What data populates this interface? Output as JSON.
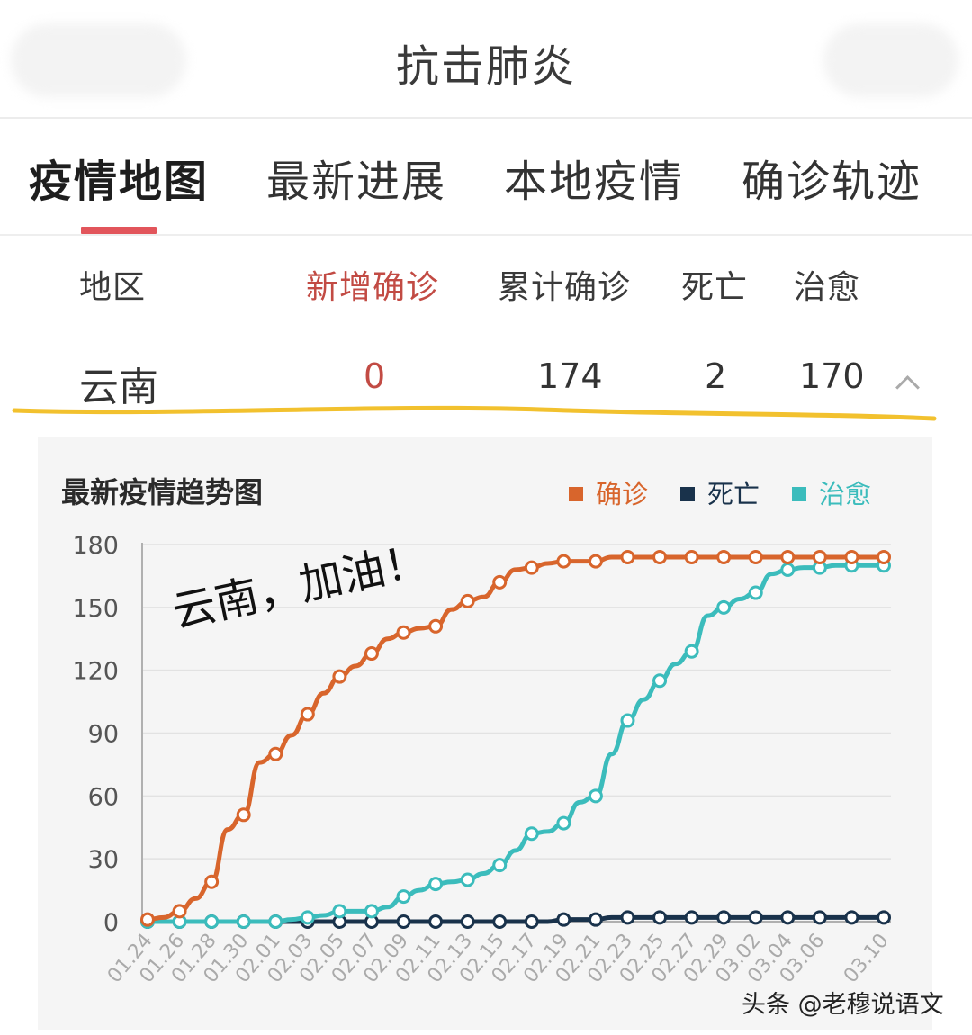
{
  "header": {
    "title": "抗击肺炎"
  },
  "tabs": [
    {
      "label": "疫情地图"
    },
    {
      "label": "最新进展"
    },
    {
      "label": "本地疫情"
    },
    {
      "label": "确诊轨迹"
    }
  ],
  "table": {
    "columns": [
      "地区",
      "新增确诊",
      "累计确诊",
      "死亡",
      "治愈"
    ],
    "row": {
      "region": "云南",
      "new_confirmed": "0",
      "total_confirmed": "174",
      "deaths": "2",
      "cured": "170"
    }
  },
  "colors": {
    "accent": "#e2555b",
    "confirmed": "#d8652c",
    "deaths": "#19324b",
    "cured": "#3bbcbc"
  },
  "icons": {
    "expand": "chevron-up-icon"
  },
  "annotation": "云南，加油！",
  "watermark": "头条 @老穆说语文",
  "chart_data": {
    "type": "line",
    "title": "最新疫情趋势图",
    "legend_position": "top-right",
    "ylim": [
      0,
      180
    ],
    "yticks": [
      0,
      30,
      60,
      90,
      120,
      150,
      180
    ],
    "grid": true,
    "x": [
      "01.24",
      "01.25",
      "01.26",
      "01.27",
      "01.28",
      "01.29",
      "01.30",
      "01.31",
      "02.01",
      "02.02",
      "02.03",
      "02.04",
      "02.05",
      "02.06",
      "02.07",
      "02.08",
      "02.09",
      "02.10",
      "02.11",
      "02.12",
      "02.13",
      "02.14",
      "02.15",
      "02.16",
      "02.17",
      "02.18",
      "02.19",
      "02.20",
      "02.21",
      "02.22",
      "02.23",
      "02.24",
      "02.25",
      "02.26",
      "02.27",
      "02.28",
      "02.29",
      "03.01",
      "03.02",
      "03.03",
      "03.04",
      "03.05",
      "03.06",
      "03.07",
      "03.08",
      "03.09",
      "03.10"
    ],
    "x_tick_labels": [
      "01.24",
      "01.26",
      "01.28",
      "01.30",
      "02.01",
      "02.03",
      "02.05",
      "02.07",
      "02.09",
      "02.11",
      "02.13",
      "02.15",
      "02.17",
      "02.19",
      "02.21",
      "02.23",
      "02.25",
      "02.27",
      "02.29",
      "03.02",
      "03.04",
      "03.06",
      "03.10"
    ],
    "series": [
      {
        "name": "确诊",
        "color": "#d8652c",
        "values": [
          1,
          2,
          5,
          11,
          19,
          44,
          51,
          76,
          80,
          89,
          99,
          109,
          117,
          122,
          128,
          135,
          138,
          140,
          141,
          149,
          153,
          155,
          162,
          168,
          169,
          171,
          172,
          172,
          172,
          174,
          174,
          174,
          174,
          174,
          174,
          174,
          174,
          174,
          174,
          174,
          174,
          174,
          174,
          174,
          174,
          174,
          174
        ]
      },
      {
        "name": "死亡",
        "color": "#19324b",
        "values": [
          0,
          0,
          0,
          0,
          0,
          0,
          0,
          0,
          0,
          0,
          0,
          0,
          0,
          0,
          0,
          0,
          0,
          0,
          0,
          0,
          0,
          0,
          0,
          0,
          0,
          0,
          1,
          1,
          1,
          2,
          2,
          2,
          2,
          2,
          2,
          2,
          2,
          2,
          2,
          2,
          2,
          2,
          2,
          2,
          2,
          2,
          2
        ]
      },
      {
        "name": "治愈",
        "color": "#3bbcbc",
        "values": [
          0,
          0,
          0,
          0,
          0,
          0,
          0,
          0,
          0,
          1,
          2,
          3,
          5,
          5,
          5,
          7,
          12,
          15,
          18,
          19,
          20,
          23,
          27,
          34,
          42,
          43,
          47,
          57,
          60,
          80,
          96,
          106,
          115,
          123,
          129,
          146,
          150,
          154,
          157,
          166,
          168,
          169,
          169,
          170,
          170,
          170,
          170
        ]
      }
    ]
  }
}
